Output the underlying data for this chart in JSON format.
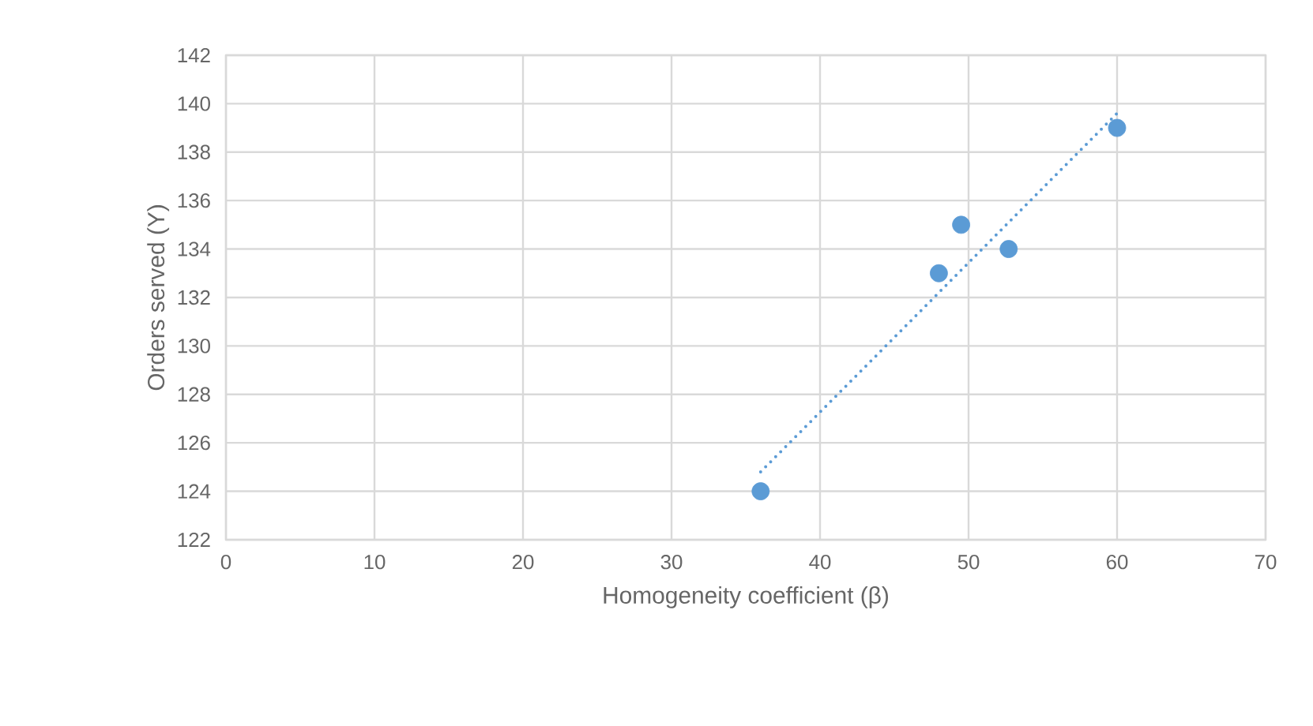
{
  "chart_data": {
    "type": "scatter",
    "xlabel": "Homogeneity coefficient (β)",
    "ylabel": "Orders served (Y)",
    "xlim": [
      0,
      70
    ],
    "xticks": [
      0,
      10,
      20,
      30,
      40,
      50,
      60,
      70
    ],
    "ylim": [
      122,
      142
    ],
    "yticks": [
      122,
      124,
      126,
      128,
      130,
      132,
      134,
      136,
      138,
      140,
      142
    ],
    "grid": true,
    "marker": "circle",
    "series": [
      {
        "color": "#5b9bd5",
        "x": [
          36,
          48,
          49.5,
          52.7,
          60
        ],
        "values": [
          124,
          133,
          135,
          134,
          139
        ]
      },
      {
        "type": "line",
        "color": "#5b9bd5",
        "line_style": "dotted",
        "marker": "none",
        "x": [
          36,
          60
        ],
        "values": [
          124.8,
          139.6
        ]
      }
    ]
  }
}
